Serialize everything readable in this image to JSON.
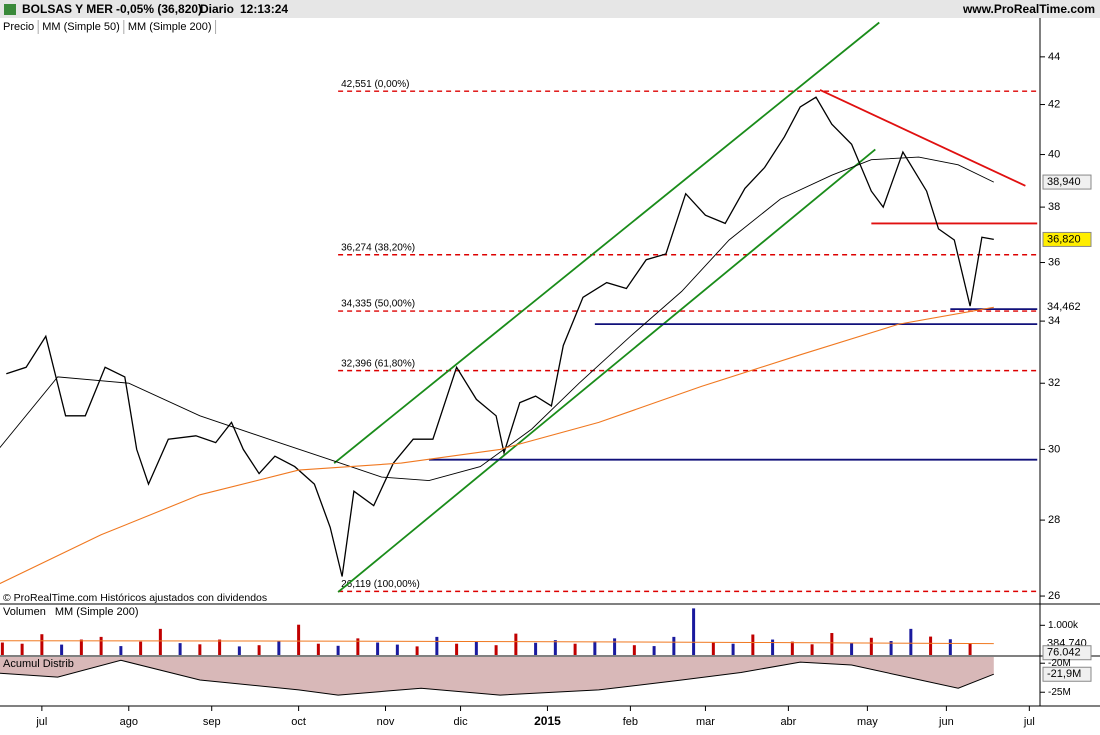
{
  "header": {
    "symbol": "BOLSAS Y MER",
    "change": "-0,05% (36,820)",
    "period": "Diario",
    "time": "12:13:24",
    "site": "www.ProRealTime.com",
    "note": "© ProRealTime.com Históricos ajustados con dividendos"
  },
  "chart_data": [
    {
      "type": "line",
      "log_scale": true,
      "xlim": [
        -10.6,
        252.7
      ],
      "xticks": [
        {
          "value": 0,
          "label": "jul"
        },
        {
          "value": 22,
          "label": "ago"
        },
        {
          "value": 43,
          "label": "sep"
        },
        {
          "value": 65,
          "label": "oct"
        },
        {
          "value": 87,
          "label": "nov"
        },
        {
          "value": 106,
          "label": "dic"
        },
        {
          "value": 128,
          "label": "2015"
        },
        {
          "value": 149,
          "label": "feb"
        },
        {
          "value": 168,
          "label": "mar"
        },
        {
          "value": 189,
          "label": "abr"
        },
        {
          "value": 209,
          "label": "may"
        },
        {
          "value": 229,
          "label": "jun"
        },
        {
          "value": 250,
          "label": "jul"
        }
      ],
      "ylim": [
        25.9,
        45.7
      ],
      "yticks": [
        26,
        28,
        30,
        32,
        34,
        36,
        38,
        40,
        42,
        44
      ],
      "series": [
        {
          "name": "Precio",
          "color": "#000000",
          "width": 1.3,
          "x": [
            -9,
            -4,
            1,
            6,
            11,
            16,
            21,
            24,
            27,
            32,
            39,
            44,
            48,
            51,
            55,
            59,
            64,
            69,
            73,
            76,
            79,
            84,
            89,
            94,
            99,
            105,
            110,
            115,
            117,
            121,
            125,
            129,
            132,
            137,
            143,
            148,
            153,
            158,
            163,
            168,
            173,
            178,
            183,
            188,
            192,
            196,
            200,
            205,
            210,
            213,
            218,
            224,
            227,
            231,
            235,
            238,
            241
          ],
          "values": [
            32.3,
            32.5,
            33.5,
            31,
            31,
            32.5,
            32.2,
            30,
            29,
            30.3,
            30.4,
            30.2,
            30.8,
            30,
            29.3,
            29.8,
            29.5,
            29,
            27.8,
            26.5,
            28.8,
            28.4,
            29.6,
            30.3,
            30.3,
            32.5,
            31.5,
            31,
            29.9,
            31.4,
            31.6,
            31.3,
            33.2,
            34.8,
            35.3,
            35.1,
            36.1,
            36.3,
            38.5,
            37.7,
            37.4,
            38.7,
            39.5,
            40.7,
            41.9,
            42.3,
            41.2,
            40.4,
            38.6,
            38,
            40.1,
            38.6,
            37.2,
            36.8,
            34.5,
            36.9,
            36.82
          ]
        },
        {
          "name": "MM (Simple 50)",
          "color": "#000000",
          "width": 0.9,
          "x": [
            -11,
            4,
            22,
            40,
            60,
            73,
            86,
            98,
            111,
            124,
            136,
            149,
            162,
            174,
            187,
            200,
            210,
            222,
            232,
            241
          ],
          "values": [
            30,
            32.2,
            32,
            31,
            30.2,
            29.7,
            29.2,
            29.1,
            29.5,
            30.6,
            32,
            33.5,
            35,
            36.8,
            38.3,
            39.2,
            39.8,
            39.9,
            39.6,
            38.94
          ]
        },
        {
          "name": "MM (Simple 200)",
          "color": "#f07820",
          "width": 1.1,
          "x": [
            -11,
            15,
            40,
            65,
            91,
            116,
            141,
            167,
            192,
            217,
            241
          ],
          "values": [
            26.3,
            27.6,
            28.7,
            29.4,
            29.6,
            30,
            30.8,
            31.9,
            32.9,
            33.9,
            34.462
          ]
        }
      ],
      "levels": [
        {
          "value": 42.551,
          "label": "42,551 (0,00%)"
        },
        {
          "value": 36.274,
          "label": "36,274 (38,20%)"
        },
        {
          "value": 34.335,
          "label": "34,335 (50,00%)"
        },
        {
          "value": 32.396,
          "label": "32,396 (61,80%)"
        },
        {
          "value": 26.119,
          "label": "26,119 (100,00%)"
        }
      ],
      "level_color": "#dd0000",
      "lines": [
        {
          "color": "#1a8c1a",
          "x": [
            74,
            212
          ],
          "y": [
            29.6,
            45.5
          ]
        },
        {
          "color": "#1a8c1a",
          "x": [
            75,
            211
          ],
          "y": [
            26.1,
            40.2
          ]
        },
        {
          "color": "#e01010",
          "x": [
            197,
            249
          ],
          "y": [
            42.6,
            38.8
          ]
        },
        {
          "color": "#e01010",
          "x": [
            210,
            252
          ],
          "y": [
            37.4,
            37.4
          ]
        },
        {
          "color": "#10107a",
          "x": [
            230,
            252
          ],
          "y": [
            34.4,
            34.4
          ]
        },
        {
          "color": "#10107a",
          "x": [
            140,
            252
          ],
          "y": [
            33.9,
            33.9
          ]
        },
        {
          "color": "#10107a",
          "x": [
            98,
            252
          ],
          "y": [
            29.7,
            29.7
          ]
        }
      ],
      "last_labels": [
        {
          "value": 38.94,
          "label": "38,940",
          "bg": "#f0f0f0",
          "fg": "#000000"
        },
        {
          "value": 36.82,
          "label": "36,820",
          "bg": "#ffee00",
          "fg": "#000000"
        },
        {
          "value": 34.462,
          "label": "34,462",
          "bg": "#ffffff",
          "fg": "#f07820"
        }
      ]
    },
    {
      "type": "bar",
      "title": "Volumen",
      "ylim": [
        0,
        1650
      ],
      "yticks": [
        {
          "value": 1000,
          "label": "1.000k"
        }
      ],
      "x": [
        -10,
        -5,
        0,
        5,
        10,
        15,
        20,
        25,
        30,
        35,
        40,
        45,
        50,
        55,
        60,
        65,
        70,
        75,
        80,
        85,
        90,
        95,
        100,
        105,
        110,
        115,
        120,
        125,
        130,
        135,
        140,
        145,
        150,
        155,
        160,
        165,
        170,
        175,
        180,
        185,
        190,
        195,
        200,
        205,
        210,
        215,
        220,
        225,
        230,
        235
      ],
      "values": [
        420,
        380,
        700,
        350,
        520,
        610,
        300,
        450,
        880,
        400,
        360,
        520,
        290,
        330,
        470,
        1020,
        380,
        310,
        560,
        420,
        350,
        290,
        610,
        380,
        450,
        330,
        720,
        410,
        500,
        380,
        460,
        560,
        330,
        300,
        610,
        1570,
        420,
        380,
        690,
        520,
        450,
        360,
        740,
        400,
        580,
        470,
        880,
        620,
        530,
        400
      ],
      "colors": [
        "#c00000",
        "#c00000",
        "#c00000",
        "#1a1a9e",
        "#c00000",
        "#c00000",
        "#1a1a9e",
        "#c00000",
        "#c00000",
        "#1a1a9e",
        "#c00000",
        "#c00000",
        "#1a1a9e",
        "#c00000",
        "#1a1a9e",
        "#c00000",
        "#c00000",
        "#1a1a9e",
        "#c00000",
        "#1a1a9e",
        "#1a1a9e",
        "#c00000",
        "#1a1a9e",
        "#c00000",
        "#1a1a9e",
        "#c00000",
        "#c00000",
        "#1a1a9e",
        "#1a1a9e",
        "#c00000",
        "#1a1a9e",
        "#1a1a9e",
        "#c00000",
        "#1a1a9e",
        "#1a1a9e",
        "#1a1a9e",
        "#c00000",
        "#1a1a9e",
        "#c00000",
        "#1a1a9e",
        "#c00000",
        "#c00000",
        "#c00000",
        "#1a1a9e",
        "#c00000",
        "#1a1a9e",
        "#1a1a9e",
        "#c00000",
        "#1a1a9e",
        "#c00000"
      ],
      "ma": {
        "name": "MM (Simple 200)",
        "color": "#f07820",
        "x": [
          -11,
          50,
          120,
          180,
          241
        ],
        "values": [
          480,
          470,
          450,
          420,
          384.74
        ]
      },
      "last_labels": [
        {
          "value": 384.74,
          "label": "384.740",
          "bg": "#ffffff",
          "fg": "#f07820"
        },
        {
          "value": 76.042,
          "label": "76.042",
          "bg": "#f0f0f0",
          "fg": "#000000"
        }
      ]
    },
    {
      "type": "area",
      "title": "Acumul Distrib",
      "color": "#d8b8b8",
      "ylim": [
        -27.2,
        -19.1
      ],
      "yticks": [
        {
          "value": -20,
          "label": "-20M"
        },
        {
          "value": -25,
          "label": "-25M"
        }
      ],
      "x": [
        -11,
        4,
        20,
        40,
        65,
        75,
        96,
        116,
        141,
        162,
        177,
        192,
        205,
        217,
        232,
        241
      ],
      "values": [
        -21.7,
        -22.4,
        -19.5,
        -22.9,
        -24.6,
        -25.5,
        -24.3,
        -25.5,
        -24.6,
        -22.9,
        -21.6,
        -19.8,
        -20.3,
        -22.1,
        -24.3,
        -21.9
      ],
      "last_labels": [
        {
          "value": -21.9,
          "label": "-21,9M",
          "bg": "#f0f0f0",
          "fg": "#000000"
        }
      ]
    }
  ]
}
